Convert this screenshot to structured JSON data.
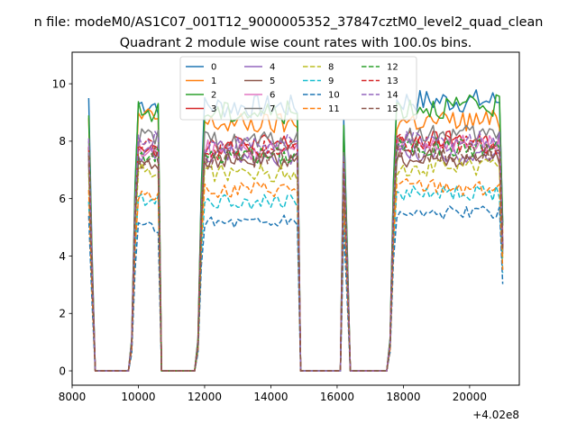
{
  "chart_data": {
    "type": "line",
    "suptitle": "n file: modeM0/AS1C07_001T12_9000005352_37847cztM0_level2_quad_clean",
    "title": "Quadrant 2 module wise count rates with 100.0s bins.",
    "xlabel": "",
    "ylabel": "",
    "x_offset_label": "+4.02e8",
    "xlim": [
      8000,
      21500
    ],
    "ylim": [
      -0.5,
      11.1
    ],
    "x_ticks": [
      8000,
      10000,
      12000,
      14000,
      16000,
      18000,
      20000
    ],
    "x_tick_labels": [
      "8000",
      "10000",
      "12000",
      "14000",
      "16000",
      "18000",
      "20000"
    ],
    "y_ticks": [
      0,
      2,
      4,
      6,
      8,
      10
    ],
    "y_tick_labels": [
      "0",
      "2",
      "4",
      "6",
      "8",
      "10"
    ],
    "grid": false,
    "legend_position": "top-center",
    "legend_columns": 4,
    "x_start": 8500,
    "x_step": 100,
    "segments": [
      [
        8500,
        8600
      ],
      [
        9800,
        10600
      ],
      [
        11800,
        14800
      ],
      [
        16200,
        16300
      ],
      [
        17600,
        21000
      ]
    ],
    "series": [
      {
        "name": "0",
        "color": "#1f77b4",
        "dash": "solid",
        "plateau": [
          9.5,
          9.3,
          9.2,
          9.4
        ]
      },
      {
        "name": "1",
        "color": "#ff7f0e",
        "dash": "solid",
        "plateau": [
          8.8,
          8.8,
          8.6,
          8.7
        ]
      },
      {
        "name": "2",
        "color": "#2ca02c",
        "dash": "solid",
        "plateau": [
          8.9,
          9.0,
          9.0,
          9.2
        ]
      },
      {
        "name": "3",
        "color": "#d62728",
        "dash": "solid",
        "plateau": [
          7.8,
          7.9,
          7.9,
          8.0
        ]
      },
      {
        "name": "4",
        "color": "#9467bd",
        "dash": "solid",
        "plateau": [
          7.4,
          7.5,
          7.5,
          7.6
        ]
      },
      {
        "name": "5",
        "color": "#8c564b",
        "dash": "solid",
        "plateau": [
          7.2,
          7.3,
          7.3,
          7.4
        ]
      },
      {
        "name": "6",
        "color": "#e377c2",
        "dash": "solid",
        "plateau": [
          7.7,
          7.8,
          7.7,
          7.9
        ]
      },
      {
        "name": "7",
        "color": "#7f7f7f",
        "dash": "solid",
        "plateau": [
          8.0,
          8.1,
          8.0,
          8.2
        ]
      },
      {
        "name": "8",
        "color": "#bcbd22",
        "dash": "dashed",
        "plateau": [
          6.9,
          7.0,
          6.9,
          7.1
        ]
      },
      {
        "name": "9",
        "color": "#17becf",
        "dash": "dashed",
        "plateau": [
          5.9,
          6.0,
          5.9,
          6.2
        ]
      },
      {
        "name": "10",
        "color": "#1f77b4",
        "dash": "dashed",
        "plateau": [
          5.4,
          5.0,
          5.2,
          5.5
        ]
      },
      {
        "name": "11",
        "color": "#ff7f0e",
        "dash": "dashed",
        "plateau": [
          6.3,
          6.2,
          6.3,
          6.4
        ]
      },
      {
        "name": "12",
        "color": "#2ca02c",
        "dash": "dashed",
        "plateau": [
          7.6,
          7.6,
          7.5,
          7.8
        ]
      },
      {
        "name": "13",
        "color": "#d62728",
        "dash": "dashed",
        "plateau": [
          7.8,
          7.8,
          7.7,
          7.9
        ]
      },
      {
        "name": "14",
        "color": "#9467bd",
        "dash": "dashed",
        "plateau": [
          8.1,
          8.0,
          7.9,
          8.0
        ]
      },
      {
        "name": "15",
        "color": "#8c564b",
        "dash": "dashed",
        "plateau": [
          7.5,
          7.5,
          7.4,
          7.6
        ]
      }
    ]
  }
}
